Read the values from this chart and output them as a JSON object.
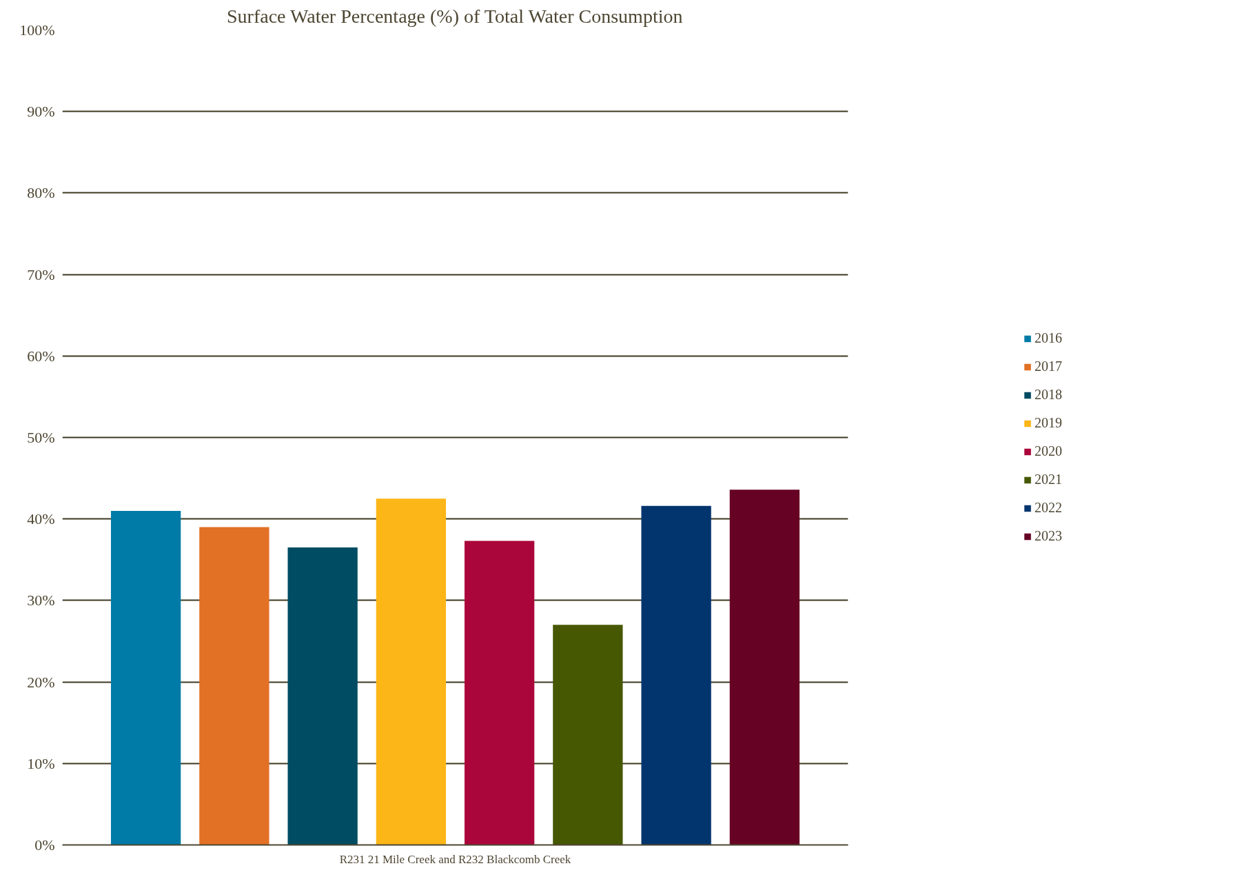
{
  "chart_data": {
    "type": "bar",
    "title": "Surface Water Percentage (%) of Total Water Consumption",
    "categories": [
      "R231 21 Mile Creek and R232 Blackcomb Creek"
    ],
    "series": [
      {
        "name": "2016",
        "color": "#007ba7",
        "values": [
          41.0
        ]
      },
      {
        "name": "2017",
        "color": "#e27125",
        "values": [
          39.0
        ]
      },
      {
        "name": "2018",
        "color": "#004c63",
        "values": [
          36.5
        ]
      },
      {
        "name": "2019",
        "color": "#fdb618",
        "values": [
          42.5
        ]
      },
      {
        "name": "2020",
        "color": "#ab063b",
        "values": [
          37.3
        ]
      },
      {
        "name": "2021",
        "color": "#465802",
        "values": [
          27.0
        ]
      },
      {
        "name": "2022",
        "color": "#02356d",
        "values": [
          41.6
        ]
      },
      {
        "name": "2023",
        "color": "#660224",
        "values": [
          43.6
        ]
      }
    ],
    "ylim": [
      0,
      100
    ],
    "yticks": [
      {
        "value": 0,
        "label": "0%"
      },
      {
        "value": 10,
        "label": "10%"
      },
      {
        "value": 20,
        "label": "20%"
      },
      {
        "value": 30,
        "label": "30%"
      },
      {
        "value": 40,
        "label": "40%"
      },
      {
        "value": 50,
        "label": "50%"
      },
      {
        "value": 60,
        "label": "60%"
      },
      {
        "value": 70,
        "label": "70%"
      },
      {
        "value": 80,
        "label": "80%"
      },
      {
        "value": 90,
        "label": "90%"
      },
      {
        "value": 100,
        "label": "100%"
      }
    ],
    "grid": "y",
    "legend": "right"
  }
}
